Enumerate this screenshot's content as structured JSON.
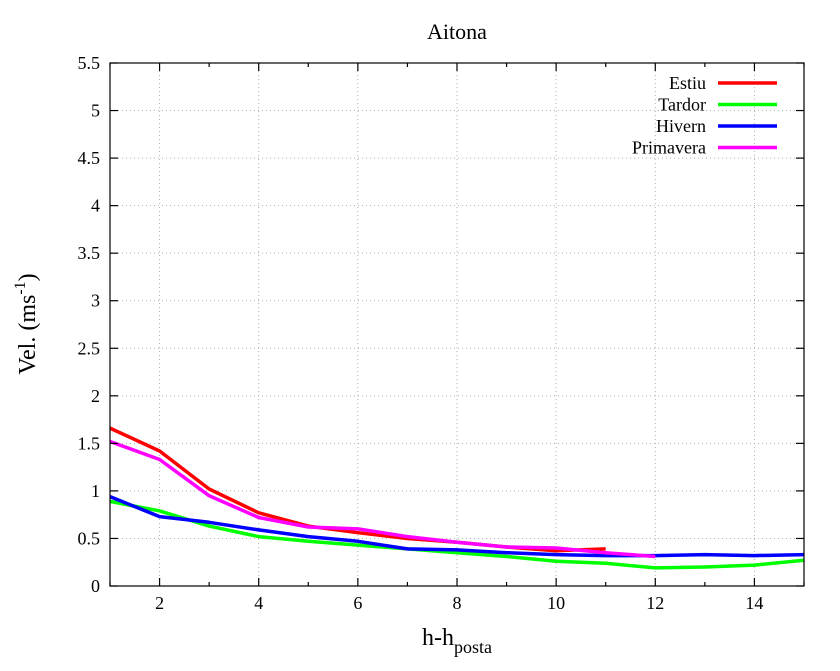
{
  "chart_data": {
    "type": "line",
    "title": "Aitona",
    "xlabel": {
      "main": "h-h",
      "sub": "posta"
    },
    "ylabel": {
      "main": "Vel. (ms",
      "sup": "-1",
      "end": ")"
    },
    "xlim": [
      1,
      15
    ],
    "ylim": [
      0,
      5.5
    ],
    "xticks": [
      2,
      4,
      6,
      8,
      10,
      12,
      14
    ],
    "yticks": [
      0,
      0.5,
      1,
      1.5,
      2,
      2.5,
      3,
      3.5,
      4,
      4.5,
      5,
      5.5
    ],
    "xtick_labels": [
      "2",
      "4",
      "6",
      "8",
      "10",
      "12",
      "14"
    ],
    "ytick_labels": [
      "0",
      "0.5",
      "1",
      "1.5",
      "2",
      "2.5",
      "3",
      "3.5",
      "4",
      "4.5",
      "5",
      "5.5"
    ],
    "grid": true,
    "legend_position": "top-right",
    "series": [
      {
        "name": "Estiu",
        "color": "#ff0000",
        "x": [
          1,
          2,
          3,
          4,
          5,
          6,
          7,
          8,
          9,
          10,
          11
        ],
        "y": [
          1.66,
          1.42,
          1.02,
          0.77,
          0.63,
          0.56,
          0.5,
          0.46,
          0.41,
          0.37,
          0.39
        ]
      },
      {
        "name": "Tardor",
        "color": "#00ff00",
        "x": [
          1,
          2,
          3,
          4,
          5,
          6,
          7,
          8,
          9,
          10,
          11,
          12,
          13,
          14,
          15
        ],
        "y": [
          0.89,
          0.79,
          0.63,
          0.52,
          0.47,
          0.43,
          0.39,
          0.35,
          0.31,
          0.26,
          0.24,
          0.19,
          0.2,
          0.22,
          0.27
        ]
      },
      {
        "name": "Hivern",
        "color": "#0000ff",
        "x": [
          1,
          2,
          3,
          4,
          5,
          6,
          7,
          8,
          9,
          10,
          11,
          12,
          13,
          14,
          15
        ],
        "y": [
          0.94,
          0.73,
          0.67,
          0.59,
          0.52,
          0.47,
          0.39,
          0.38,
          0.35,
          0.33,
          0.32,
          0.32,
          0.33,
          0.32,
          0.33
        ]
      },
      {
        "name": "Primavera",
        "color": "#ff00ff",
        "x": [
          1,
          2,
          3,
          4,
          5,
          6,
          7,
          8,
          9,
          10,
          11,
          12
        ],
        "y": [
          1.52,
          1.33,
          0.95,
          0.72,
          0.62,
          0.6,
          0.52,
          0.46,
          0.41,
          0.4,
          0.35,
          0.31
        ]
      }
    ]
  }
}
